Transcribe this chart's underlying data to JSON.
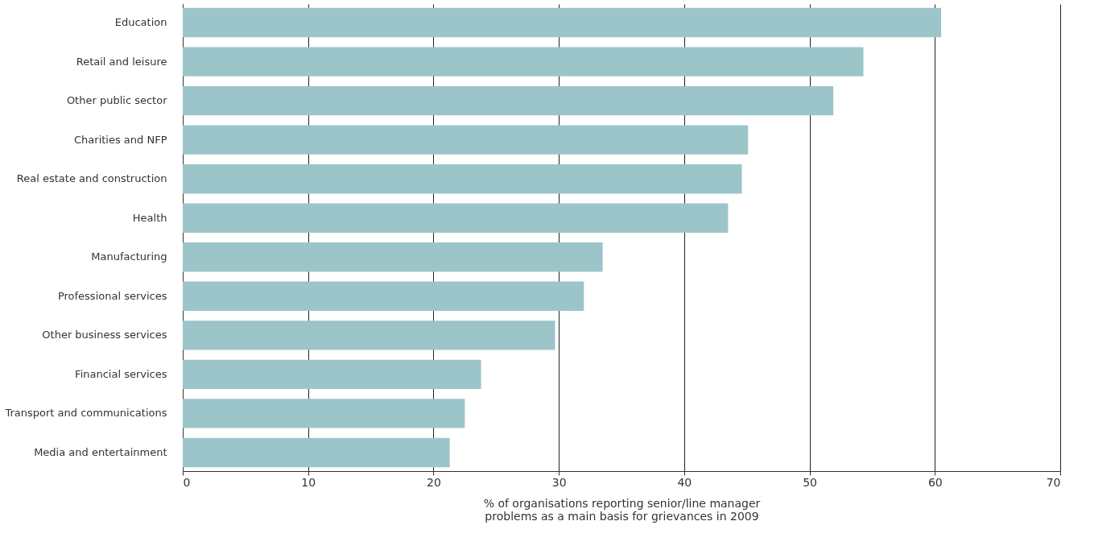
{
  "chart_data": {
    "type": "bar",
    "orientation": "horizontal",
    "categories": [
      "Education",
      "Retail and leisure",
      "Other public sector",
      "Charities and NFP",
      "Real estate and construction",
      "Health",
      "Manufacturing",
      "Professional services",
      "Other business services",
      "Financial services",
      "Transport and communications",
      "Media and entertainment"
    ],
    "values": [
      60.5,
      54.3,
      51.9,
      45.1,
      44.6,
      43.5,
      33.5,
      32.0,
      29.7,
      23.8,
      22.5,
      21.3
    ],
    "color": "#9cc5c9",
    "xlabel": "% of organisations reporting senior/line manager\nproblems as a main basis for grievances in 2009",
    "xlim": [
      0,
      70
    ],
    "xticks": [
      0,
      10,
      20,
      30,
      40,
      50,
      60,
      70
    ],
    "grid": "x"
  }
}
